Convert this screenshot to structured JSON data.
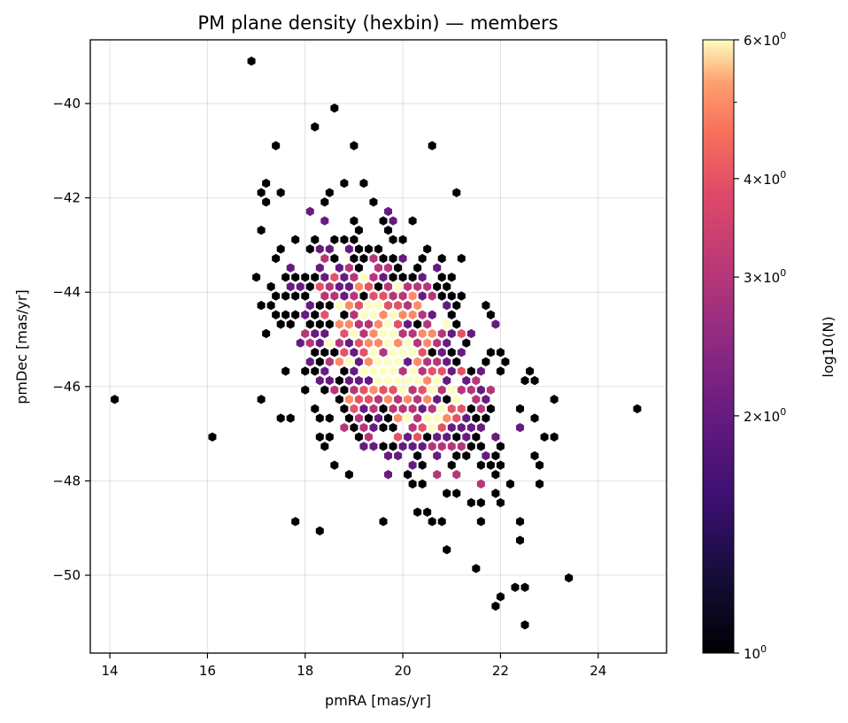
{
  "chart_data": {
    "type": "hexbin",
    "title": "PM plane density (hexbin) — members",
    "xlabel": "pmRA [mas/yr]",
    "ylabel": "pmDec [mas/yr]",
    "xlim": [
      13.6,
      25.4
    ],
    "ylim": [
      -51.65,
      -38.65
    ],
    "xticks": [
      14,
      16,
      18,
      20,
      22,
      24
    ],
    "yticks": [
      -40,
      -42,
      -44,
      -46,
      -48,
      -50
    ],
    "grid": true,
    "colormap": "magma",
    "colorbar": {
      "label": "log10(N)",
      "scale": "log",
      "range": [
        1,
        6
      ],
      "major_ticks": [
        {
          "value": 1,
          "label_base": "10",
          "label_exp": "0"
        },
        {
          "value": 2,
          "label_base": "2×10",
          "label_exp": "0"
        },
        {
          "value": 3,
          "label_base": "3×10",
          "label_exp": "0"
        },
        {
          "value": 4,
          "label_base": "4×10",
          "label_exp": "0"
        },
        {
          "value": 6,
          "label_base": "6×10",
          "label_exp": "0"
        }
      ],
      "minor_ticks": [
        5
      ]
    },
    "outlier_bins": [
      {
        "x": 16.95,
        "y": -39.05,
        "count": 1
      },
      {
        "x": 14.2,
        "y": -46.25,
        "count": 1
      },
      {
        "x": 16.1,
        "y": -47.0,
        "count": 1
      },
      {
        "x": 24.9,
        "y": -46.55,
        "count": 1
      },
      {
        "x": 17.8,
        "y": -48.8,
        "count": 1
      },
      {
        "x": 18.25,
        "y": -49.1,
        "count": 1
      },
      {
        "x": 23.3,
        "y": -50.0,
        "count": 1
      },
      {
        "x": 22.5,
        "y": -51.05,
        "count": 1
      },
      {
        "x": 21.8,
        "y": -50.6,
        "count": 1
      },
      {
        "x": 22.0,
        "y": -50.45,
        "count": 1
      },
      {
        "x": 22.2,
        "y": -50.3,
        "count": 1
      },
      {
        "x": 22.55,
        "y": -50.3,
        "count": 1
      },
      {
        "x": 21.5,
        "y": -49.85,
        "count": 1
      },
      {
        "x": 21.05,
        "y": -41.9,
        "count": 1
      },
      {
        "x": 20.65,
        "y": -40.85,
        "count": 1
      },
      {
        "x": 18.25,
        "y": -40.4,
        "count": 1
      },
      {
        "x": 18.55,
        "y": -40.1,
        "count": 1
      },
      {
        "x": 19.05,
        "y": -40.85,
        "count": 1
      },
      {
        "x": 17.45,
        "y": -40.85,
        "count": 1
      },
      {
        "x": 17.15,
        "y": -41.9,
        "count": 1
      },
      {
        "x": 17.25,
        "y": -41.75,
        "count": 1
      },
      {
        "x": 23.05,
        "y": -47.0,
        "count": 1
      },
      {
        "x": 22.85,
        "y": -47.15,
        "count": 1
      },
      {
        "x": 22.6,
        "y": -45.65,
        "count": 1
      },
      {
        "x": 17.05,
        "y": -46.25,
        "count": 1
      },
      {
        "x": 17.5,
        "y": -46.7,
        "count": 1
      },
      {
        "x": 22.3,
        "y": -48.8,
        "count": 1
      },
      {
        "x": 22.45,
        "y": -49.25,
        "count": 1
      },
      {
        "x": 20.85,
        "y": -49.4,
        "count": 1
      }
    ]
  }
}
